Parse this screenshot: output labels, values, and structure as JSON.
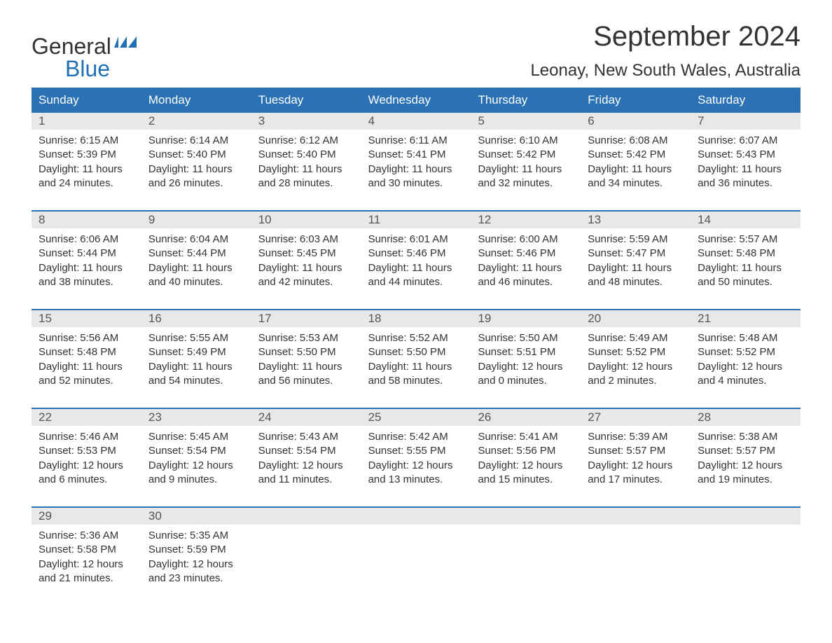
{
  "logo": {
    "text_general": "General",
    "text_blue": "Blue",
    "flag_color": "#1f6fb2"
  },
  "header": {
    "month_title": "September 2024",
    "location": "Leonay, New South Wales, Australia"
  },
  "colors": {
    "header_bg": "#2a72b5",
    "header_text": "#ffffff",
    "daynum_bg": "#e8e8e8",
    "daynum_text": "#555555",
    "body_text": "#333333",
    "week_border": "#2a72b5",
    "page_bg": "#ffffff"
  },
  "weekdays": [
    "Sunday",
    "Monday",
    "Tuesday",
    "Wednesday",
    "Thursday",
    "Friday",
    "Saturday"
  ],
  "weeks": [
    [
      {
        "num": "1",
        "sunrise": "Sunrise: 6:15 AM",
        "sunset": "Sunset: 5:39 PM",
        "daylight": "Daylight: 11 hours and 24 minutes."
      },
      {
        "num": "2",
        "sunrise": "Sunrise: 6:14 AM",
        "sunset": "Sunset: 5:40 PM",
        "daylight": "Daylight: 11 hours and 26 minutes."
      },
      {
        "num": "3",
        "sunrise": "Sunrise: 6:12 AM",
        "sunset": "Sunset: 5:40 PM",
        "daylight": "Daylight: 11 hours and 28 minutes."
      },
      {
        "num": "4",
        "sunrise": "Sunrise: 6:11 AM",
        "sunset": "Sunset: 5:41 PM",
        "daylight": "Daylight: 11 hours and 30 minutes."
      },
      {
        "num": "5",
        "sunrise": "Sunrise: 6:10 AM",
        "sunset": "Sunset: 5:42 PM",
        "daylight": "Daylight: 11 hours and 32 minutes."
      },
      {
        "num": "6",
        "sunrise": "Sunrise: 6:08 AM",
        "sunset": "Sunset: 5:42 PM",
        "daylight": "Daylight: 11 hours and 34 minutes."
      },
      {
        "num": "7",
        "sunrise": "Sunrise: 6:07 AM",
        "sunset": "Sunset: 5:43 PM",
        "daylight": "Daylight: 11 hours and 36 minutes."
      }
    ],
    [
      {
        "num": "8",
        "sunrise": "Sunrise: 6:06 AM",
        "sunset": "Sunset: 5:44 PM",
        "daylight": "Daylight: 11 hours and 38 minutes."
      },
      {
        "num": "9",
        "sunrise": "Sunrise: 6:04 AM",
        "sunset": "Sunset: 5:44 PM",
        "daylight": "Daylight: 11 hours and 40 minutes."
      },
      {
        "num": "10",
        "sunrise": "Sunrise: 6:03 AM",
        "sunset": "Sunset: 5:45 PM",
        "daylight": "Daylight: 11 hours and 42 minutes."
      },
      {
        "num": "11",
        "sunrise": "Sunrise: 6:01 AM",
        "sunset": "Sunset: 5:46 PM",
        "daylight": "Daylight: 11 hours and 44 minutes."
      },
      {
        "num": "12",
        "sunrise": "Sunrise: 6:00 AM",
        "sunset": "Sunset: 5:46 PM",
        "daylight": "Daylight: 11 hours and 46 minutes."
      },
      {
        "num": "13",
        "sunrise": "Sunrise: 5:59 AM",
        "sunset": "Sunset: 5:47 PM",
        "daylight": "Daylight: 11 hours and 48 minutes."
      },
      {
        "num": "14",
        "sunrise": "Sunrise: 5:57 AM",
        "sunset": "Sunset: 5:48 PM",
        "daylight": "Daylight: 11 hours and 50 minutes."
      }
    ],
    [
      {
        "num": "15",
        "sunrise": "Sunrise: 5:56 AM",
        "sunset": "Sunset: 5:48 PM",
        "daylight": "Daylight: 11 hours and 52 minutes."
      },
      {
        "num": "16",
        "sunrise": "Sunrise: 5:55 AM",
        "sunset": "Sunset: 5:49 PM",
        "daylight": "Daylight: 11 hours and 54 minutes."
      },
      {
        "num": "17",
        "sunrise": "Sunrise: 5:53 AM",
        "sunset": "Sunset: 5:50 PM",
        "daylight": "Daylight: 11 hours and 56 minutes."
      },
      {
        "num": "18",
        "sunrise": "Sunrise: 5:52 AM",
        "sunset": "Sunset: 5:50 PM",
        "daylight": "Daylight: 11 hours and 58 minutes."
      },
      {
        "num": "19",
        "sunrise": "Sunrise: 5:50 AM",
        "sunset": "Sunset: 5:51 PM",
        "daylight": "Daylight: 12 hours and 0 minutes."
      },
      {
        "num": "20",
        "sunrise": "Sunrise: 5:49 AM",
        "sunset": "Sunset: 5:52 PM",
        "daylight": "Daylight: 12 hours and 2 minutes."
      },
      {
        "num": "21",
        "sunrise": "Sunrise: 5:48 AM",
        "sunset": "Sunset: 5:52 PM",
        "daylight": "Daylight: 12 hours and 4 minutes."
      }
    ],
    [
      {
        "num": "22",
        "sunrise": "Sunrise: 5:46 AM",
        "sunset": "Sunset: 5:53 PM",
        "daylight": "Daylight: 12 hours and 6 minutes."
      },
      {
        "num": "23",
        "sunrise": "Sunrise: 5:45 AM",
        "sunset": "Sunset: 5:54 PM",
        "daylight": "Daylight: 12 hours and 9 minutes."
      },
      {
        "num": "24",
        "sunrise": "Sunrise: 5:43 AM",
        "sunset": "Sunset: 5:54 PM",
        "daylight": "Daylight: 12 hours and 11 minutes."
      },
      {
        "num": "25",
        "sunrise": "Sunrise: 5:42 AM",
        "sunset": "Sunset: 5:55 PM",
        "daylight": "Daylight: 12 hours and 13 minutes."
      },
      {
        "num": "26",
        "sunrise": "Sunrise: 5:41 AM",
        "sunset": "Sunset: 5:56 PM",
        "daylight": "Daylight: 12 hours and 15 minutes."
      },
      {
        "num": "27",
        "sunrise": "Sunrise: 5:39 AM",
        "sunset": "Sunset: 5:57 PM",
        "daylight": "Daylight: 12 hours and 17 minutes."
      },
      {
        "num": "28",
        "sunrise": "Sunrise: 5:38 AM",
        "sunset": "Sunset: 5:57 PM",
        "daylight": "Daylight: 12 hours and 19 minutes."
      }
    ],
    [
      {
        "num": "29",
        "sunrise": "Sunrise: 5:36 AM",
        "sunset": "Sunset: 5:58 PM",
        "daylight": "Daylight: 12 hours and 21 minutes."
      },
      {
        "num": "30",
        "sunrise": "Sunrise: 5:35 AM",
        "sunset": "Sunset: 5:59 PM",
        "daylight": "Daylight: 12 hours and 23 minutes."
      },
      {
        "empty": true
      },
      {
        "empty": true
      },
      {
        "empty": true
      },
      {
        "empty": true
      },
      {
        "empty": true
      }
    ]
  ]
}
